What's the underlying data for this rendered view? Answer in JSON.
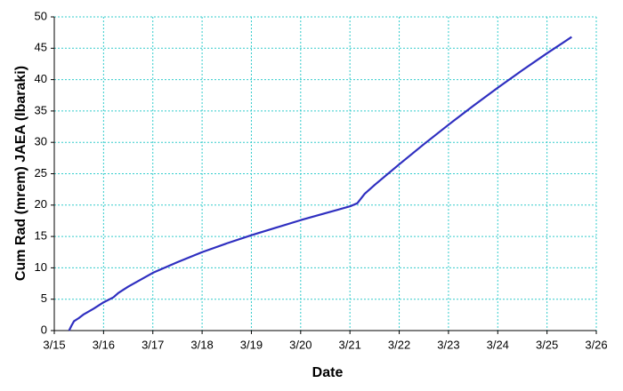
{
  "chart_data": {
    "type": "line",
    "xlabel": "Date",
    "ylabel": "Cum Rad (mrem) JAEA  (Ibaraki)",
    "x": [
      15.3,
      15.35,
      15.4,
      15.5,
      15.6,
      15.8,
      16.0,
      16.2,
      16.3,
      16.5,
      17.0,
      17.5,
      18.0,
      18.5,
      19.0,
      19.5,
      20.0,
      20.5,
      21.0,
      21.15,
      21.3,
      21.5,
      22.0,
      22.5,
      23.0,
      23.5,
      24.0,
      24.5,
      25.0,
      25.5
    ],
    "series": [
      {
        "color": "#2f2fc0",
        "values": [
          0,
          0.8,
          1.5,
          2.0,
          2.6,
          3.5,
          4.5,
          5.3,
          6.0,
          7.0,
          9.2,
          10.9,
          12.5,
          13.9,
          15.2,
          16.4,
          17.6,
          18.7,
          19.8,
          20.3,
          21.8,
          23.2,
          26.5,
          29.7,
          32.8,
          35.8,
          38.7,
          41.5,
          44.2,
          46.8
        ]
      }
    ],
    "xlim": [
      15,
      26
    ],
    "xticks": [
      {
        "value": 15,
        "label": "3/15"
      },
      {
        "value": 16,
        "label": "3/16"
      },
      {
        "value": 17,
        "label": "3/17"
      },
      {
        "value": 18,
        "label": "3/18"
      },
      {
        "value": 19,
        "label": "3/19"
      },
      {
        "value": 20,
        "label": "3/20"
      },
      {
        "value": 21,
        "label": "3/21"
      },
      {
        "value": 22,
        "label": "3/22"
      },
      {
        "value": 23,
        "label": "3/23"
      },
      {
        "value": 24,
        "label": "3/24"
      },
      {
        "value": 25,
        "label": "3/25"
      },
      {
        "value": 26,
        "label": "3/26"
      }
    ],
    "ylim": [
      0,
      50
    ],
    "yticks": [
      0,
      5,
      10,
      15,
      20,
      25,
      30,
      35,
      40,
      45,
      50
    ],
    "grid": true,
    "grid_color": "#33cccc"
  }
}
